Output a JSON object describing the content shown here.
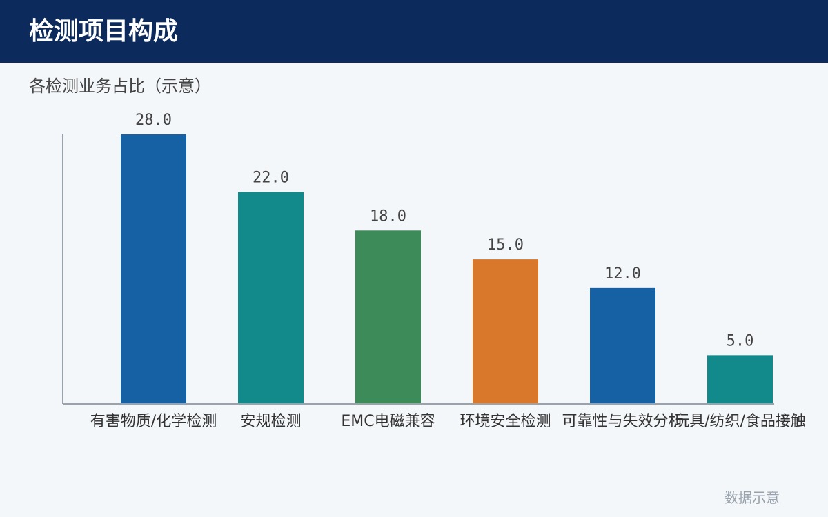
{
  "header": {
    "title": "检测项目构成"
  },
  "subtitle": "各检测业务占比（示意）",
  "footer": {
    "note": "数据示意"
  },
  "theme": {
    "header_bg": "#0d2a5c",
    "background": "#f4f7fa",
    "axis_color": "#9aa3ad"
  },
  "chart_data": {
    "type": "bar",
    "title": "",
    "xlabel": "",
    "ylabel": "",
    "ylim": [
      0,
      28
    ],
    "grid": false,
    "categories": [
      "有害物质/化学检测",
      "安规检测",
      "EMC电磁兼容",
      "环境安全检测",
      "可靠性与失效分析",
      "玩具/纺织/食品接触"
    ],
    "values": [
      28.0,
      22.0,
      18.0,
      15.0,
      12.0,
      5.0
    ],
    "value_labels": [
      "28.0",
      "22.0",
      "18.0",
      "15.0",
      "12.0",
      "5.0"
    ],
    "colors": [
      "#1660a4",
      "#128a8c",
      "#3e8b5a",
      "#d9782a",
      "#1660a4",
      "#128a8c"
    ]
  }
}
